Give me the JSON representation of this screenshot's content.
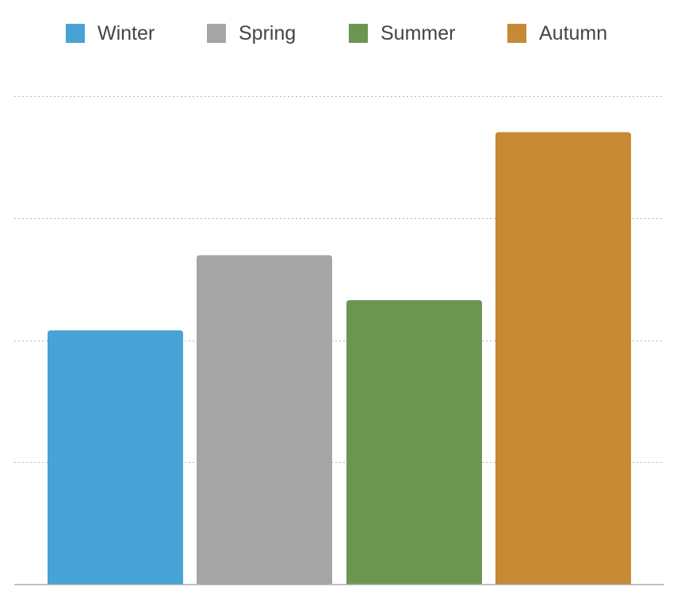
{
  "chart_data": {
    "type": "bar",
    "title": "",
    "xlabel": "",
    "ylabel": "",
    "categories": [
      "Winter",
      "Spring",
      "Summer",
      "Autumn"
    ],
    "series": [
      {
        "name": "Winter",
        "values": [
          52,
          null,
          null,
          null
        ],
        "color": "#47a2d6"
      },
      {
        "name": "Spring",
        "values": [
          null,
          67.4,
          null,
          null
        ],
        "color": "#a5a5a5"
      },
      {
        "name": "Summer",
        "values": [
          null,
          null,
          58.2,
          null
        ],
        "color": "#6a9652"
      },
      {
        "name": "Autumn",
        "values": [
          null,
          null,
          null,
          92.6
        ],
        "color": "#c68934"
      }
    ],
    "values": [
      52,
      67.4,
      58.2,
      92.6
    ],
    "ylim": [
      0,
      100
    ],
    "gridlines": true,
    "tick_labels_shown": false,
    "legend_position": "top"
  },
  "legend": {
    "items": [
      {
        "label": "Winter",
        "color": "#47a2d6"
      },
      {
        "label": "Spring",
        "color": "#a5a5a5"
      },
      {
        "label": "Summer",
        "color": "#6a9652"
      },
      {
        "label": "Autumn",
        "color": "#c68934"
      }
    ]
  }
}
